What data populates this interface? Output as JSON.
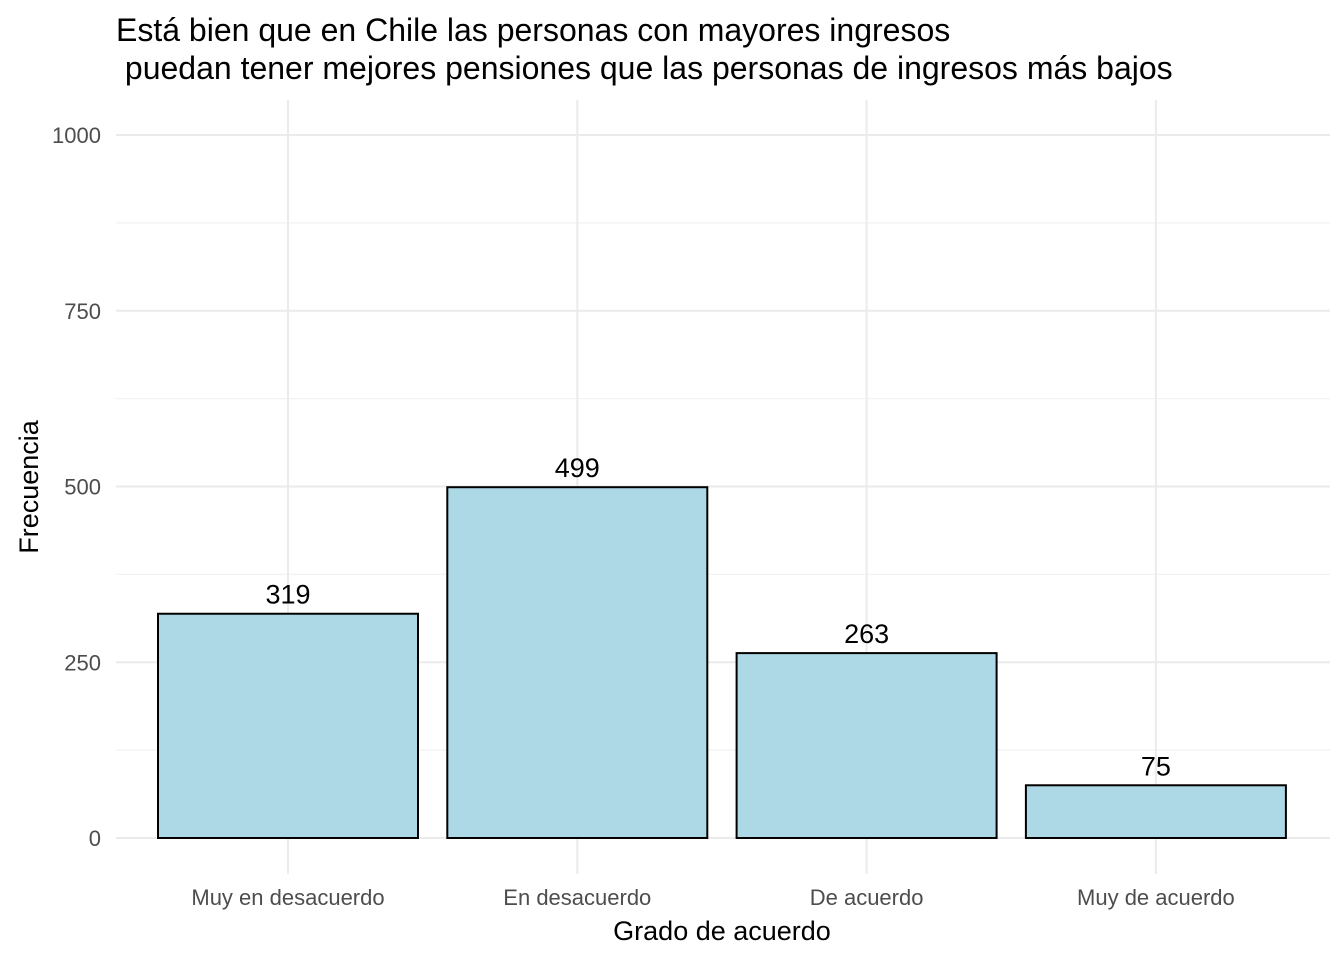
{
  "chart_data": {
    "type": "bar",
    "title_lines": [
      "Está bien que en Chile las personas con mayores ingresos",
      " puedan tener mejores pensiones que las personas de ingresos más bajos"
    ],
    "xlabel": "Grado de acuerdo",
    "ylabel": "Frecuencia",
    "categories": [
      "Muy en desacuerdo",
      "En desacuerdo",
      "De acuerdo",
      "Muy de acuerdo"
    ],
    "values": [
      319,
      499,
      263,
      75
    ],
    "data_labels": [
      "319",
      "499",
      "263",
      "75"
    ],
    "yticks": [
      0,
      250,
      500,
      750,
      1000
    ],
    "ytick_labels": [
      "0",
      "250",
      "500",
      "750",
      "1000"
    ],
    "ylim": [
      0,
      1000
    ],
    "grid": true,
    "legend": "none",
    "colors": {
      "bar_fill": "#add8e6",
      "bar_stroke": "#000000"
    }
  }
}
